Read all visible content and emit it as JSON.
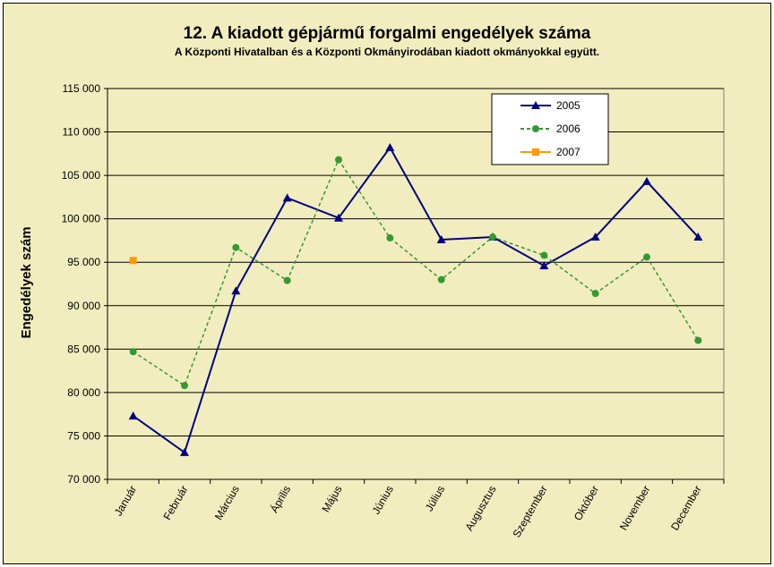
{
  "chart_data": {
    "type": "line",
    "title": "12. A  kiadott gépjármű forgalmi engedélyek száma",
    "subtitle": "A  Központi Hivatalban és a Központi Okmányirodában kiadott okmányokkal együtt.",
    "xlabel": "",
    "ylabel": "Engedélyek szám",
    "categories": [
      "Január",
      "Február",
      "Március",
      "Április",
      "Május",
      "Június",
      "Július",
      "Augusztus",
      "Szeptember",
      "Október",
      "November",
      "December"
    ],
    "ylim": [
      70000,
      115000
    ],
    "yticks": [
      70000,
      75000,
      80000,
      85000,
      90000,
      95000,
      100000,
      105000,
      110000,
      115000
    ],
    "ytick_labels": [
      "70 000",
      "75 000",
      "80 000",
      "85 000",
      "90 000",
      "95 000",
      "100 000",
      "105 000",
      "110 000",
      "115 000"
    ],
    "grid": true,
    "legend_position": "top-right",
    "series": [
      {
        "name": "2005",
        "color": "#000080",
        "style": "solid",
        "marker": "triangle",
        "values": [
          77300,
          73100,
          91700,
          102400,
          100100,
          108200,
          97600,
          97900,
          94600,
          97900,
          104300,
          97900
        ]
      },
      {
        "name": "2006",
        "color": "#339933",
        "style": "dashed",
        "marker": "circle",
        "values": [
          84700,
          80800,
          96700,
          92900,
          106800,
          97800,
          93000,
          97900,
          95800,
          91400,
          95600,
          86000
        ]
      },
      {
        "name": "2007",
        "color": "#ff9900",
        "style": "solid",
        "marker": "square",
        "values": [
          95200,
          null,
          null,
          null,
          null,
          null,
          null,
          null,
          null,
          null,
          null,
          null
        ]
      }
    ]
  }
}
